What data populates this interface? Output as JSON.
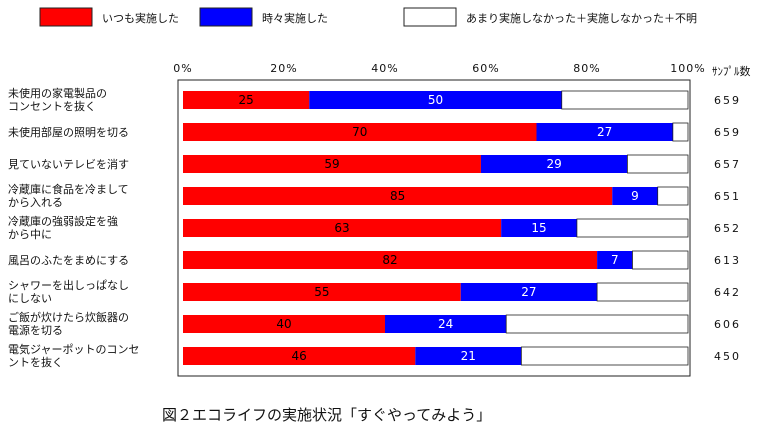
{
  "chart_data": {
    "type": "bar",
    "stacked": true,
    "orientation": "horizontal",
    "title": "図２エコライフの実施状況「すぐやってみよう」",
    "legend": [
      {
        "name": "いつも実施した",
        "color": "#ff0000"
      },
      {
        "name": "時々実施した",
        "color": "#0000ff"
      },
      {
        "name": "あまり実施しなかった＋実施しなかった＋不明",
        "color": "#ffffff"
      }
    ],
    "x_ticks": [
      "0%",
      "20%",
      "40%",
      "60%",
      "80%",
      "100%"
    ],
    "xlim": [
      0,
      100
    ],
    "sample_size_label": "ｻﾝﾌﾟﾙ数",
    "categories": [
      [
        "未使用の家電製品の",
        "コンセントを抜く"
      ],
      [
        "未使用部屋の照明を切る"
      ],
      [
        "見ていないテレビを消す"
      ],
      [
        "冷蔵庫に食品を冷まして",
        "から入れる"
      ],
      [
        "冷蔵庫の強弱設定を強",
        "から中に"
      ],
      [
        "風呂のふたをまめにする"
      ],
      [
        "シャワーを出しっぱなし",
        "にしない"
      ],
      [
        "ご飯が炊けたら炊飯器の",
        "電源を切る"
      ],
      [
        "電気ジャーポットのコンセ",
        "ントを抜く"
      ]
    ],
    "series": [
      {
        "name": "いつも実施した",
        "values": [
          25,
          70,
          59,
          85,
          63,
          82,
          55,
          40,
          46
        ]
      },
      {
        "name": "時々実施した",
        "values": [
          50,
          27,
          29,
          9,
          15,
          7,
          27,
          24,
          21
        ]
      }
    ],
    "sample_sizes": [
      "659",
      "659",
      "657",
      "651",
      "652",
      "613",
      "642",
      "606",
      "450"
    ]
  }
}
